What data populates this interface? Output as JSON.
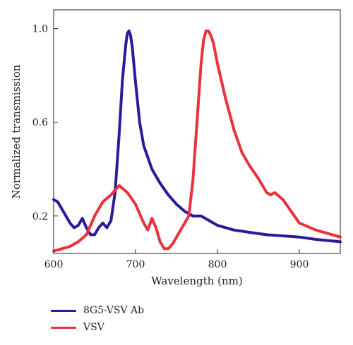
{
  "chart_data": {
    "type": "line",
    "xlabel": "Wavelength (nm)",
    "ylabel": "Normalized transmission",
    "xlim": [
      600,
      950
    ],
    "ylim": [
      0.04,
      1.08
    ],
    "x_ticks": [
      600,
      700,
      800,
      900
    ],
    "x_tick_labels": [
      "600",
      "700",
      "800",
      "900"
    ],
    "y_ticks": [
      0.2,
      0.6,
      1.0
    ],
    "y_tick_labels": [
      "0.2",
      "0.6",
      "1.0"
    ],
    "grid": false,
    "legend_position": "bottom-left outside",
    "series": [
      {
        "name": "8G5-VSV Ab",
        "color": "#2a1b9a",
        "x": [
          600,
          605,
          610,
          615,
          620,
          625,
          630,
          635,
          640,
          645,
          650,
          655,
          660,
          665,
          670,
          675,
          680,
          684,
          688,
          690,
          692,
          694,
          696,
          700,
          705,
          710,
          720,
          730,
          740,
          750,
          760,
          770,
          780,
          790,
          800,
          820,
          840,
          860,
          880,
          900,
          920,
          950
        ],
        "y": [
          0.27,
          0.26,
          0.23,
          0.2,
          0.17,
          0.15,
          0.16,
          0.19,
          0.15,
          0.12,
          0.12,
          0.15,
          0.17,
          0.15,
          0.18,
          0.3,
          0.55,
          0.78,
          0.93,
          0.98,
          0.99,
          0.97,
          0.92,
          0.77,
          0.6,
          0.5,
          0.4,
          0.34,
          0.29,
          0.25,
          0.22,
          0.2,
          0.2,
          0.18,
          0.16,
          0.14,
          0.13,
          0.12,
          0.115,
          0.11,
          0.1,
          0.09
        ]
      },
      {
        "name": "VSV",
        "color": "#e8323c",
        "x": [
          600,
          610,
          620,
          630,
          640,
          650,
          660,
          670,
          680,
          690,
          700,
          710,
          715,
          720,
          725,
          730,
          735,
          740,
          745,
          750,
          755,
          760,
          765,
          770,
          775,
          780,
          783,
          786,
          789,
          792,
          795,
          800,
          810,
          820,
          830,
          840,
          850,
          860,
          865,
          870,
          880,
          890,
          900,
          920,
          950
        ],
        "y": [
          0.05,
          0.06,
          0.07,
          0.09,
          0.12,
          0.2,
          0.26,
          0.29,
          0.33,
          0.3,
          0.25,
          0.17,
          0.14,
          0.19,
          0.15,
          0.09,
          0.06,
          0.06,
          0.08,
          0.11,
          0.14,
          0.17,
          0.2,
          0.35,
          0.6,
          0.85,
          0.95,
          0.99,
          0.99,
          0.97,
          0.94,
          0.85,
          0.7,
          0.57,
          0.47,
          0.41,
          0.36,
          0.3,
          0.29,
          0.3,
          0.27,
          0.22,
          0.17,
          0.14,
          0.11
        ]
      }
    ]
  }
}
